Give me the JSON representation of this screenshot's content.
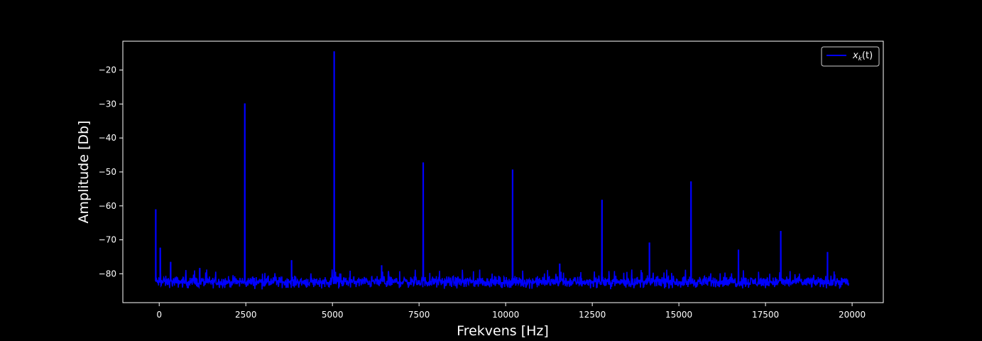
{
  "chart_data": {
    "type": "line",
    "title": "",
    "xlabel": "Frekvens [Hz]",
    "ylabel": "Amplitude [Db]",
    "xlim": [
      -1050,
      20900
    ],
    "ylim": [
      -88.5,
      -11.5
    ],
    "xticks": [
      0,
      2500,
      5000,
      7500,
      10000,
      12500,
      15000,
      17500,
      20000
    ],
    "yticks": [
      -80,
      -70,
      -60,
      -50,
      -40,
      -30,
      -20
    ],
    "xtick_labels": [
      "0",
      "2500",
      "5000",
      "7500",
      "10000",
      "12500",
      "15000",
      "17500",
      "20000"
    ],
    "ytick_labels": [
      "−80",
      "−70",
      "−60",
      "−50",
      "−40",
      "−30",
      "−20"
    ],
    "legend_position": "top-right",
    "grid": false,
    "noise_floor": {
      "mean": -82.2,
      "min": -84.8,
      "max": -80.0,
      "x_start": -100,
      "x_end": 19900
    },
    "series": [
      {
        "name": "x_k(t)",
        "color": "#0000ff",
        "peaks": [
          {
            "x": -100,
            "y": -61.0
          },
          {
            "x": 30,
            "y": -72.3
          },
          {
            "x": 330,
            "y": -76.5
          },
          {
            "x": 1170,
            "y": -78.3
          },
          {
            "x": 2470,
            "y": -29.8
          },
          {
            "x": 3820,
            "y": -76.0
          },
          {
            "x": 5050,
            "y": -14.5
          },
          {
            "x": 6420,
            "y": -77.5
          },
          {
            "x": 7620,
            "y": -47.2
          },
          {
            "x": 10200,
            "y": -49.3
          },
          {
            "x": 11560,
            "y": -77.0
          },
          {
            "x": 12780,
            "y": -58.2
          },
          {
            "x": 14150,
            "y": -70.8
          },
          {
            "x": 15350,
            "y": -52.8
          },
          {
            "x": 16720,
            "y": -72.9
          },
          {
            "x": 17940,
            "y": -67.4
          },
          {
            "x": 19290,
            "y": -73.6
          }
        ]
      }
    ]
  },
  "legend": {
    "label_base": "x",
    "label_sub": "k",
    "label_tail": "(t)"
  }
}
